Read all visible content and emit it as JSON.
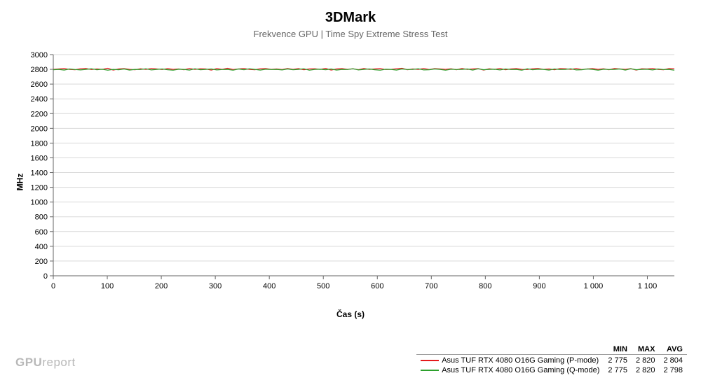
{
  "title": "3DMark",
  "subtitle": "Frekvence GPU | Time Spy Extreme Stress Test",
  "ylabel": "MHz",
  "xlabel": "Čas (s)",
  "watermark_bold": "GPU",
  "watermark_light": "report",
  "chart": {
    "type": "line",
    "background": "#ffffff",
    "grid_color": "#d9d9d9",
    "axis_color": "#666666",
    "tick_color": "#000000",
    "tick_fontsize": 11,
    "x": {
      "min": 0,
      "max": 1150,
      "step": 100,
      "labels": [
        "0",
        "100",
        "200",
        "300",
        "400",
        "500",
        "600",
        "700",
        "800",
        "900",
        "1 000",
        "1 100"
      ]
    },
    "y": {
      "min": 0,
      "max": 3000,
      "step": 200,
      "labels": [
        "0",
        "200",
        "400",
        "600",
        "800",
        "1000",
        "1200",
        "1400",
        "1600",
        "1800",
        "2000",
        "2200",
        "2400",
        "2600",
        "2800",
        "3000"
      ]
    },
    "series": [
      {
        "name": "Asus TUF RTX 4080 O16G Gaming (P-mode)",
        "color": "#e41a1c",
        "stats": {
          "min": "2 775",
          "max": "2 820",
          "avg": "2 804"
        },
        "data_y": [
          2800,
          2805,
          2810,
          2800,
          2795,
          2808,
          2812,
          2798,
          2805,
          2800,
          2815,
          2790,
          2805,
          2810,
          2800,
          2795,
          2808,
          2800,
          2812,
          2805,
          2798,
          2810,
          2800,
          2805,
          2795,
          2812,
          2800,
          2808,
          2805,
          2790,
          2810,
          2800,
          2815,
          2798,
          2805,
          2812,
          2800,
          2795,
          2808,
          2810,
          2800,
          2805,
          2798,
          2812,
          2800,
          2810,
          2795,
          2805,
          2808,
          2800,
          2812,
          2790,
          2805,
          2810,
          2800,
          2808,
          2795,
          2812,
          2800,
          2805,
          2810,
          2798,
          2800,
          2808,
          2815,
          2795,
          2805,
          2800,
          2812,
          2798,
          2810,
          2805,
          2800,
          2808,
          2795,
          2812,
          2800,
          2805,
          2810,
          2790,
          2808,
          2800,
          2812,
          2795,
          2805,
          2810,
          2800,
          2798,
          2808,
          2812,
          2800,
          2805,
          2795,
          2810,
          2808,
          2800,
          2812,
          2798,
          2805,
          2810,
          2800,
          2808,
          2795,
          2812,
          2805,
          2800,
          2810,
          2790,
          2808,
          2805,
          2812,
          2800,
          2795,
          2810,
          2808
        ],
        "line_width": 1.2
      },
      {
        "name": "Asus TUF RTX 4080 O16G Gaming (Q-mode)",
        "color": "#2ca02c",
        "stats": {
          "min": "2 775",
          "max": "2 820",
          "avg": "2 798"
        },
        "data_y": [
          2795,
          2800,
          2790,
          2805,
          2798,
          2792,
          2800,
          2808,
          2795,
          2802,
          2788,
          2800,
          2795,
          2805,
          2790,
          2800,
          2798,
          2808,
          2792,
          2800,
          2805,
          2795,
          2788,
          2802,
          2800,
          2790,
          2808,
          2795,
          2800,
          2805,
          2792,
          2798,
          2800,
          2788,
          2805,
          2795,
          2808,
          2800,
          2790,
          2802,
          2798,
          2800,
          2792,
          2805,
          2795,
          2800,
          2808,
          2788,
          2800,
          2802,
          2795,
          2805,
          2790,
          2800,
          2798,
          2808,
          2792,
          2800,
          2805,
          2795,
          2788,
          2802,
          2800,
          2790,
          2805,
          2798,
          2800,
          2808,
          2792,
          2795,
          2805,
          2800,
          2788,
          2802,
          2798,
          2800,
          2805,
          2790,
          2808,
          2795,
          2800,
          2802,
          2792,
          2805,
          2798,
          2800,
          2788,
          2808,
          2795,
          2802,
          2800,
          2790,
          2805,
          2798,
          2800,
          2808,
          2792,
          2795,
          2805,
          2800,
          2788,
          2802,
          2798,
          2800,
          2805,
          2790,
          2808,
          2795,
          2800,
          2802,
          2792,
          2805,
          2798,
          2800,
          2788
        ],
        "line_width": 1.2
      }
    ]
  },
  "legend": {
    "headers": [
      "",
      "MIN",
      "MAX",
      "AVG"
    ],
    "border_color": "#999999"
  }
}
